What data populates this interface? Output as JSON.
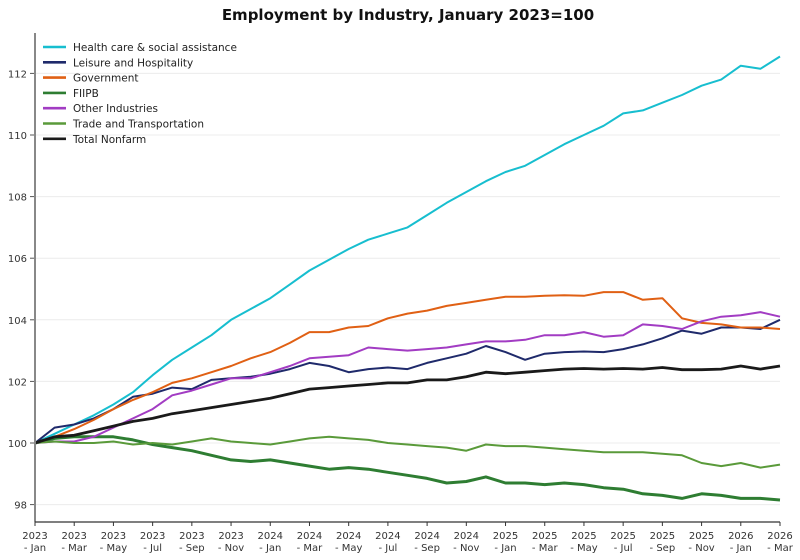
{
  "chart_data": {
    "type": "line",
    "title": "Employment by Industry, January 2023=100",
    "xlabel": "",
    "ylabel": "",
    "ylim": [
      97.3,
      113.5
    ],
    "yticks": [
      98,
      100,
      102,
      104,
      106,
      108,
      110,
      112
    ],
    "grid": true,
    "legend_position": "top-left",
    "x": [
      "2023-Jan",
      "2023-Feb",
      "2023-Mar",
      "2023-Apr",
      "2023-May",
      "2023-Jun",
      "2023-Jul",
      "2023-Aug",
      "2023-Sep",
      "2023-Oct",
      "2023-Nov",
      "2023-Dec",
      "2024-Jan",
      "2024-Feb",
      "2024-Mar",
      "2024-Apr",
      "2024-May",
      "2024-Jun",
      "2024-Jul",
      "2024-Aug",
      "2024-Sep",
      "2024-Oct",
      "2024-Nov",
      "2024-Dec",
      "2025-Jan",
      "2025-Feb",
      "2025-Mar",
      "2025-Apr",
      "2025-May",
      "2025-Jun",
      "2025-Jul",
      "2025-Aug",
      "2025-Sep",
      "2025-Oct",
      "2025-Nov",
      "2025-Dec",
      "2026-Jan",
      "2026-Feb",
      "2026-Mar"
    ],
    "xtick_labels": [
      [
        "2023",
        "- Jan"
      ],
      [
        "2023",
        "- Mar"
      ],
      [
        "2023",
        "- May"
      ],
      [
        "2023",
        "- Jul"
      ],
      [
        "2023",
        "- Sep"
      ],
      [
        "2023",
        "- Nov"
      ],
      [
        "2024",
        "- Jan"
      ],
      [
        "2024",
        "- Mar"
      ],
      [
        "2024",
        "- May"
      ],
      [
        "2024",
        "- Jul"
      ],
      [
        "2024",
        "- Sep"
      ],
      [
        "2024",
        "- Nov"
      ],
      [
        "2025",
        "- Jan"
      ],
      [
        "2025",
        "- Mar"
      ],
      [
        "2025",
        "- May"
      ],
      [
        "2025",
        "- Jul"
      ],
      [
        "2025",
        "- Sep"
      ],
      [
        "2025",
        "- Nov"
      ],
      [
        "2026",
        "- Jan"
      ],
      [
        "2026",
        "- Mar"
      ]
    ],
    "series": [
      {
        "name": "Health care & social assistance",
        "color": "#17becf",
        "width": 2,
        "values": [
          100,
          100.3,
          100.6,
          100.9,
          101.25,
          101.65,
          102.2,
          102.7,
          103.1,
          103.5,
          104.0,
          104.35,
          104.7,
          105.15,
          105.6,
          105.95,
          106.3,
          106.6,
          106.8,
          107.0,
          107.4,
          107.8,
          108.15,
          108.5,
          108.8,
          109.0,
          109.35,
          109.7,
          110.0,
          110.3,
          110.7,
          110.8,
          111.05,
          111.3,
          111.6,
          111.8,
          112.25,
          112.15,
          112.55
        ]
      },
      {
        "name": "Leisure and Hospitality",
        "color": "#1f2a6b",
        "width": 2,
        "values": [
          100,
          100.5,
          100.6,
          100.8,
          101.1,
          101.5,
          101.6,
          101.8,
          101.75,
          102.05,
          102.1,
          102.15,
          102.25,
          102.4,
          102.6,
          102.5,
          102.3,
          102.4,
          102.45,
          102.4,
          102.6,
          102.75,
          102.9,
          103.15,
          102.95,
          102.7,
          102.9,
          102.95,
          102.97,
          102.95,
          103.05,
          103.2,
          103.4,
          103.65,
          103.55,
          103.75,
          103.75,
          103.7,
          104.0
        ]
      },
      {
        "name": "Government",
        "color": "#e06014",
        "width": 2,
        "values": [
          100,
          100.2,
          100.45,
          100.75,
          101.1,
          101.4,
          101.65,
          101.95,
          102.1,
          102.3,
          102.5,
          102.75,
          102.95,
          103.25,
          103.6,
          103.6,
          103.75,
          103.8,
          104.05,
          104.2,
          104.3,
          104.45,
          104.55,
          104.65,
          104.75,
          104.75,
          104.78,
          104.8,
          104.78,
          104.9,
          104.9,
          104.65,
          104.7,
          104.05,
          103.9,
          103.85,
          103.75,
          103.75,
          103.7
        ]
      },
      {
        "name": "FIIPB",
        "color": "#2e7d32",
        "width": 3,
        "values": [
          100,
          100.15,
          100.2,
          100.2,
          100.2,
          100.1,
          99.95,
          99.85,
          99.75,
          99.6,
          99.45,
          99.4,
          99.45,
          99.35,
          99.25,
          99.15,
          99.2,
          99.15,
          99.05,
          98.95,
          98.85,
          98.7,
          98.75,
          98.9,
          98.7,
          98.7,
          98.65,
          98.7,
          98.65,
          98.55,
          98.5,
          98.35,
          98.3,
          98.2,
          98.35,
          98.3,
          98.2,
          98.2,
          98.15
        ]
      },
      {
        "name": "Other Industries",
        "color": "#a23cc3",
        "width": 2,
        "values": [
          100,
          100.05,
          100.05,
          100.2,
          100.5,
          100.8,
          101.1,
          101.55,
          101.7,
          101.9,
          102.1,
          102.1,
          102.3,
          102.5,
          102.75,
          102.8,
          102.85,
          103.1,
          103.05,
          103.0,
          103.05,
          103.1,
          103.2,
          103.3,
          103.3,
          103.35,
          103.5,
          103.5,
          103.6,
          103.45,
          103.5,
          103.85,
          103.8,
          103.7,
          103.95,
          104.1,
          104.15,
          104.25,
          104.1
        ]
      },
      {
        "name": "Trade and Transportation",
        "color": "#5a9a3a",
        "width": 2,
        "values": [
          100,
          100.05,
          100.0,
          100.0,
          100.05,
          99.95,
          100.0,
          99.95,
          100.05,
          100.15,
          100.05,
          100.0,
          99.95,
          100.05,
          100.15,
          100.2,
          100.15,
          100.1,
          100.0,
          99.95,
          99.9,
          99.85,
          99.75,
          99.95,
          99.9,
          99.9,
          99.85,
          99.8,
          99.75,
          99.7,
          99.7,
          99.7,
          99.65,
          99.6,
          99.35,
          99.25,
          99.35,
          99.2,
          99.3
        ]
      },
      {
        "name": "Total Nonfarm",
        "color": "#1a1a1a",
        "width": 2.8,
        "values": [
          100,
          100.2,
          100.25,
          100.4,
          100.55,
          100.7,
          100.8,
          100.95,
          101.05,
          101.15,
          101.25,
          101.35,
          101.45,
          101.6,
          101.75,
          101.8,
          101.85,
          101.9,
          101.95,
          101.95,
          102.05,
          102.05,
          102.15,
          102.3,
          102.25,
          102.3,
          102.35,
          102.4,
          102.42,
          102.4,
          102.42,
          102.4,
          102.45,
          102.38,
          102.38,
          102.4,
          102.5,
          102.4,
          102.5
        ]
      }
    ]
  }
}
